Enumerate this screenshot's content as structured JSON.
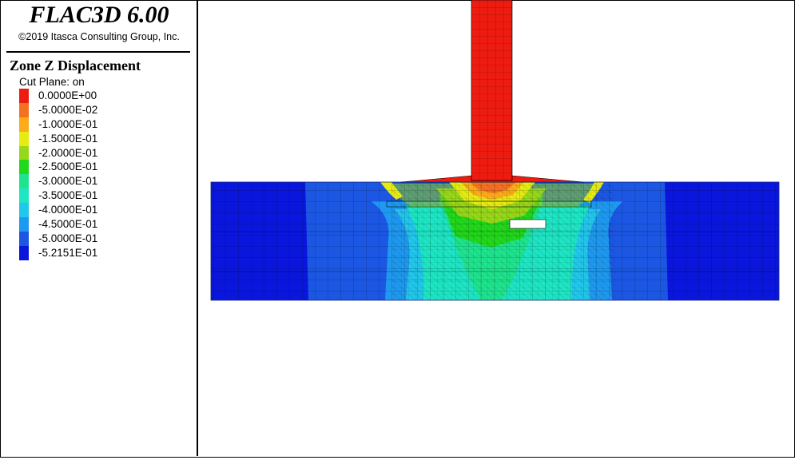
{
  "app": {
    "title": "FLAC3D 6.00",
    "copyright": "©2019 Itasca Consulting Group, Inc."
  },
  "legend": {
    "title": "Zone Z Displacement",
    "cut_plane": "Cut Plane: on",
    "items": [
      {
        "label": "0.0000E+00",
        "color": "#ee1b10"
      },
      {
        "label": "-5.0000E-02",
        "color": "#f57122"
      },
      {
        "label": "-1.0000E-01",
        "color": "#fcab19"
      },
      {
        "label": "-1.5000E-01",
        "color": "#e6ec12"
      },
      {
        "label": "-2.0000E-01",
        "color": "#98d81a"
      },
      {
        "label": "-2.5000E-01",
        "color": "#22d81c"
      },
      {
        "label": "-3.0000E-01",
        "color": "#1fe48e"
      },
      {
        "label": "-3.5000E-01",
        "color": "#1ee6c4"
      },
      {
        "label": "-4.0000E-01",
        "color": "#22c7ec"
      },
      {
        "label": "-4.5000E-01",
        "color": "#1e99f0"
      },
      {
        "label": "-5.0000E-01",
        "color": "#1b57e3"
      },
      {
        "label": "-5.2151E-01",
        "color": "#0a16dc"
      }
    ]
  },
  "viewport": {
    "model": "Zone Z Displacement contour",
    "colors": {
      "column": "#ee1b10",
      "deep_blue": "#0a16dc",
      "mid_blue": "#1b57e3",
      "light_blue": "#1e99f0",
      "cyan": "#22c7ec",
      "teal": "#1ee6c4",
      "sea_green": "#1fe48e",
      "green": "#22d81c"
    }
  }
}
